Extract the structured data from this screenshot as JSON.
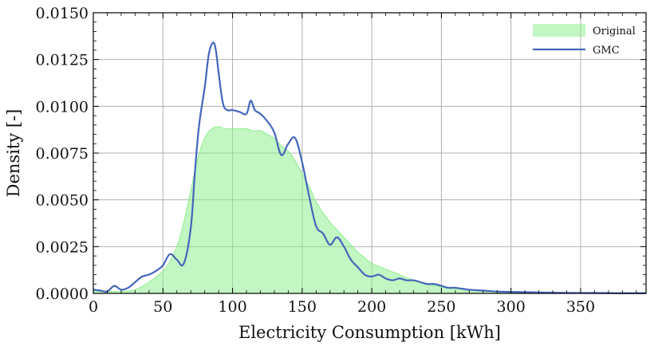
{
  "chart_data": {
    "type": "area",
    "xlabel": "Electricity Consumption [kWh]",
    "ylabel": "Density [-]",
    "xlim": [
      0,
      397
    ],
    "ylim": [
      0,
      0.015
    ],
    "x_ticks": [
      0,
      50,
      100,
      150,
      200,
      250,
      300,
      350
    ],
    "y_ticks": [
      0.0,
      0.0025,
      0.005,
      0.0075,
      0.01,
      0.0125,
      0.015
    ],
    "x_tick_labels": [
      "0",
      "50",
      "100",
      "150",
      "200",
      "250",
      "300",
      "350"
    ],
    "y_tick_labels": [
      "0.0000",
      "0.0025",
      "0.0050",
      "0.0075",
      "0.0100",
      "0.0125",
      "0.0150"
    ],
    "grid": true,
    "legend": {
      "position": "top-right"
    },
    "series": [
      {
        "name": "Original",
        "kind": "area",
        "color": "#90EE90",
        "x": [
          0,
          10,
          20,
          30,
          40,
          50,
          55,
          60,
          65,
          70,
          75,
          80,
          85,
          90,
          95,
          100,
          105,
          110,
          115,
          120,
          125,
          130,
          135,
          140,
          145,
          150,
          155,
          160,
          165,
          170,
          175,
          180,
          185,
          190,
          195,
          200,
          210,
          220,
          230,
          240,
          250,
          260,
          270,
          280,
          290,
          300,
          320,
          340,
          360,
          380,
          397
        ],
        "y": [
          0.00015,
          0.00012,
          0.0001,
          0.0002,
          0.0006,
          0.0012,
          0.0017,
          0.0025,
          0.0038,
          0.0055,
          0.0072,
          0.0083,
          0.0088,
          0.0089,
          0.0088,
          0.0088,
          0.0088,
          0.0088,
          0.0087,
          0.0087,
          0.0085,
          0.0083,
          0.0079,
          0.0076,
          0.0071,
          0.0064,
          0.0057,
          0.0049,
          0.0043,
          0.0038,
          0.0034,
          0.003,
          0.0026,
          0.0022,
          0.0019,
          0.0016,
          0.0013,
          0.001,
          0.0007,
          0.0005,
          0.00035,
          0.00025,
          0.00018,
          0.00012,
          8e-05,
          6e-05,
          4e-05,
          3e-05,
          2e-05,
          1e-05,
          1e-05
        ]
      },
      {
        "name": "GMC",
        "kind": "line",
        "color": "#4466BB",
        "x": [
          0,
          5,
          10,
          15,
          20,
          25,
          30,
          35,
          40,
          45,
          50,
          55,
          60,
          65,
          70,
          73,
          76,
          80,
          83,
          86,
          88,
          90,
          93,
          96,
          100,
          105,
          110,
          113,
          116,
          120,
          125,
          130,
          135,
          140,
          145,
          150,
          155,
          160,
          165,
          170,
          175,
          180,
          185,
          190,
          195,
          200,
          205,
          210,
          215,
          220,
          225,
          230,
          235,
          240,
          245,
          250,
          255,
          260,
          270,
          280,
          290,
          300,
          320,
          340,
          360,
          380,
          397
        ],
        "y": [
          0.0002,
          0.00015,
          0.0001,
          0.0004,
          0.0002,
          0.0003,
          0.0006,
          0.0009,
          0.001,
          0.0012,
          0.0015,
          0.0021,
          0.0018,
          0.0016,
          0.0035,
          0.0065,
          0.009,
          0.011,
          0.0128,
          0.0134,
          0.013,
          0.0118,
          0.0102,
          0.0098,
          0.0098,
          0.0097,
          0.0096,
          0.0103,
          0.0098,
          0.0096,
          0.0092,
          0.0086,
          0.0074,
          0.008,
          0.0083,
          0.007,
          0.0052,
          0.0036,
          0.0032,
          0.0026,
          0.003,
          0.0025,
          0.0018,
          0.0014,
          0.001,
          0.0009,
          0.001,
          0.0008,
          0.0007,
          0.0008,
          0.0007,
          0.0007,
          0.0006,
          0.0005,
          0.0005,
          0.0004,
          0.0003,
          0.0003,
          0.0002,
          0.00015,
          0.0001,
          8e-05,
          5e-05,
          3e-05,
          2e-05,
          1e-05,
          1e-05
        ]
      }
    ]
  }
}
